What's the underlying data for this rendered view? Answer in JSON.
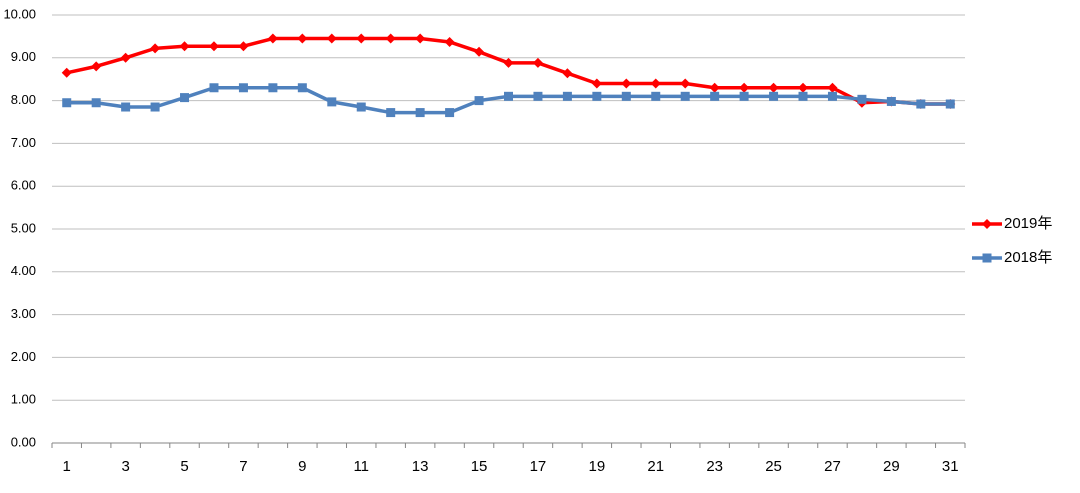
{
  "chart_data": {
    "type": "line",
    "categories": [
      "1",
      null,
      "3",
      null,
      "5",
      null,
      "7",
      null,
      "9",
      null,
      "11",
      null,
      "13",
      null,
      "15",
      null,
      "17",
      null,
      "19",
      null,
      "21",
      null,
      "23",
      null,
      "25",
      null,
      "27",
      null,
      "29",
      null,
      "31"
    ],
    "series": [
      {
        "name": "2019年",
        "color": "#ff0000",
        "marker": "diamond",
        "values": [
          8.65,
          8.8,
          9.0,
          9.22,
          9.27,
          9.27,
          9.27,
          9.45,
          9.45,
          9.45,
          9.45,
          9.45,
          9.45,
          9.37,
          9.14,
          8.88,
          8.88,
          8.64,
          8.4,
          8.4,
          8.4,
          8.4,
          8.3,
          8.3,
          8.3,
          8.3,
          8.3,
          7.95,
          7.98,
          7.92,
          7.92
        ]
      },
      {
        "name": "2018年",
        "color": "#4f81bd",
        "marker": "square",
        "values": [
          7.95,
          7.95,
          7.85,
          7.85,
          8.07,
          8.3,
          8.3,
          8.3,
          8.3,
          7.97,
          7.85,
          7.72,
          7.72,
          7.72,
          8.0,
          8.1,
          8.1,
          8.1,
          8.1,
          8.1,
          8.1,
          8.1,
          8.1,
          8.1,
          8.1,
          8.1,
          8.1,
          8.03,
          7.98,
          7.92,
          7.92
        ]
      }
    ],
    "ylim": [
      0,
      10
    ],
    "yticks": [
      {
        "value": 0,
        "label": "0.00"
      },
      {
        "value": 1,
        "label": "1.00"
      },
      {
        "value": 2,
        "label": "2.00"
      },
      {
        "value": 3,
        "label": "3.00"
      },
      {
        "value": 4,
        "label": "4.00"
      },
      {
        "value": 5,
        "label": "5.00"
      },
      {
        "value": 6,
        "label": "6.00"
      },
      {
        "value": 7,
        "label": "7.00"
      },
      {
        "value": 8,
        "label": "8.00"
      },
      {
        "value": 9,
        "label": "9.00"
      },
      {
        "value": 10,
        "label": "10.00"
      }
    ],
    "grid": true,
    "legend": "right"
  }
}
